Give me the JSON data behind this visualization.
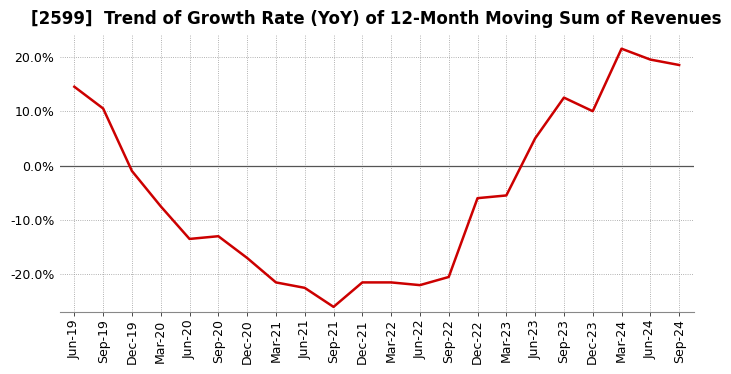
{
  "title": "[2599]  Trend of Growth Rate (YoY) of 12-Month Moving Sum of Revenues",
  "x_labels": [
    "Jun-19",
    "Sep-19",
    "Dec-19",
    "Mar-20",
    "Jun-20",
    "Sep-20",
    "Dec-20",
    "Mar-21",
    "Jun-21",
    "Sep-21",
    "Dec-21",
    "Mar-22",
    "Jun-22",
    "Sep-22",
    "Dec-22",
    "Mar-23",
    "Jun-23",
    "Sep-23",
    "Dec-23",
    "Mar-24",
    "Jun-24",
    "Sep-24"
  ],
  "y_values": [
    14.5,
    10.5,
    -1.0,
    -7.5,
    -13.5,
    -13.0,
    -17.0,
    -21.5,
    -22.5,
    -26.0,
    -21.5,
    -21.5,
    -22.0,
    -20.5,
    -6.0,
    -5.5,
    5.0,
    12.5,
    10.0,
    21.5,
    19.5,
    18.5
  ],
  "line_color": "#cc0000",
  "line_width": 1.8,
  "background_color": "#ffffff",
  "plot_bg_color": "#ffffff",
  "grid_color": "#999999",
  "zero_line_color": "#555555",
  "ylim": [
    -27,
    24
  ],
  "yticks": [
    -20,
    -10,
    0,
    10,
    20
  ],
  "ytick_labels": [
    "-20.0%",
    "-10.0%",
    "0.0%",
    "10.0%",
    "20.0%"
  ],
  "title_fontsize": 12,
  "tick_fontsize": 9,
  "title_color": "#000000",
  "title_fontfamily": "sans-serif"
}
